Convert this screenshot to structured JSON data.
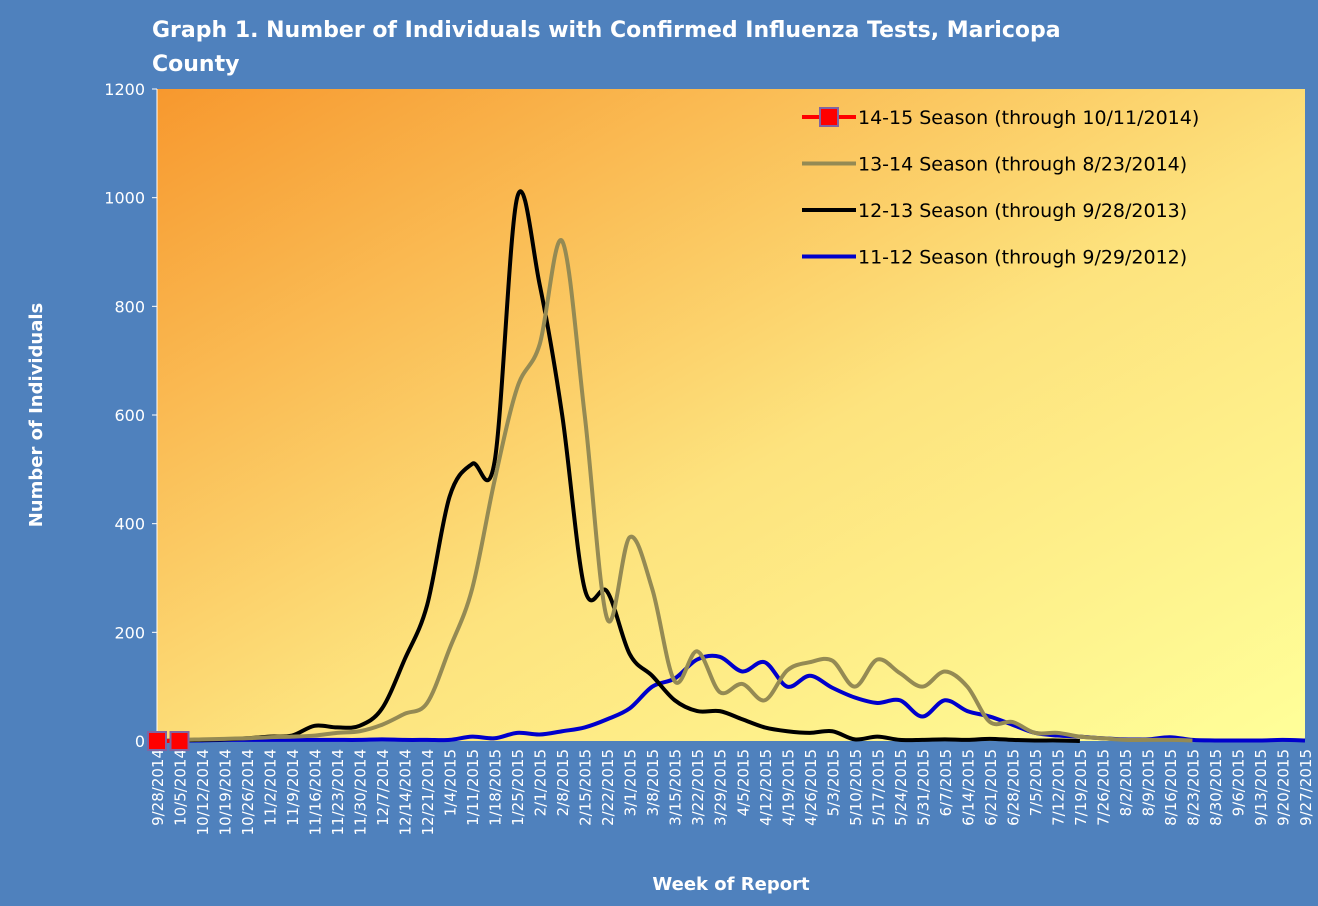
{
  "chart_data": {
    "type": "line",
    "title": "Graph 1. Number of Individuals with Confirmed Influenza Tests, Maricopa County",
    "y_label": "Number of Individuals",
    "x_label": "Week of Report",
    "categories": [
      "9/28/2014",
      "10/5/2014",
      "10/12/2014",
      "10/19/2014",
      "10/26/2014",
      "11/2/2014",
      "11/9/2014",
      "11/16/2014",
      "11/23/2014",
      "11/30/2014",
      "12/7/2014",
      "12/14/2014",
      "12/21/2014",
      "1/4/2015",
      "1/11/2015",
      "1/18/2015",
      "1/25/2015",
      "2/1/2015",
      "2/8/2015",
      "2/15/2015",
      "2/22/2015",
      "3/1/2015",
      "3/8/2015",
      "3/15/2015",
      "3/22/2015",
      "3/29/2015",
      "4/5/2015",
      "4/12/2015",
      "4/19/2015",
      "4/26/2015",
      "5/3/2015",
      "5/10/2015",
      "5/17/2015",
      "5/24/2015",
      "5/31/2015",
      "6/7/2015",
      "6/14/2015",
      "6/21/2015",
      "6/28/2015",
      "7/5/2015",
      "7/12/2015",
      "7/19/2015",
      "7/26/2015",
      "8/2/2015",
      "8/9/2015",
      "8/16/2015",
      "8/23/2015",
      "8/30/2015",
      "9/6/2015",
      "9/13/2015",
      "9/20/2015",
      "9/27/2015"
    ],
    "series": [
      {
        "name": "14-15 Season (through 10/11/2014)",
        "color": "#ff0000",
        "marker": "square",
        "values": [
          0,
          0,
          null,
          null,
          null,
          null,
          null,
          null,
          null,
          null,
          null,
          null,
          null,
          null,
          null,
          null,
          null,
          null,
          null,
          null,
          null,
          null,
          null,
          null,
          null,
          null,
          null,
          null,
          null,
          null,
          null,
          null,
          null,
          null,
          null,
          null,
          null,
          null,
          null,
          null,
          null,
          null,
          null,
          null,
          null,
          null,
          null,
          null,
          null,
          null,
          null,
          null
        ]
      },
      {
        "name": "13-14 Season (through 8/23/2014)",
        "color": "#948a54",
        "values": [
          0,
          2,
          3,
          4,
          5,
          7,
          8,
          10,
          15,
          18,
          30,
          50,
          70,
          170,
          280,
          480,
          650,
          730,
          920,
          600,
          225,
          375,
          280,
          110,
          165,
          90,
          105,
          75,
          130,
          145,
          148,
          100,
          150,
          125,
          100,
          128,
          100,
          35,
          35,
          15,
          15,
          8,
          5,
          2,
          2,
          2,
          1,
          null,
          null,
          null,
          null,
          null
        ]
      },
      {
        "name": "12-13 Season (through 9/28/2013)",
        "color": "#000000",
        "values": [
          0,
          1,
          2,
          3,
          5,
          8,
          10,
          28,
          25,
          28,
          60,
          150,
          250,
          450,
          510,
          515,
          1000,
          840,
          600,
          280,
          275,
          160,
          120,
          75,
          55,
          55,
          40,
          25,
          18,
          15,
          18,
          3,
          8,
          2,
          2,
          3,
          2,
          4,
          2,
          1,
          1,
          0,
          null,
          null,
          null,
          null,
          null,
          null,
          null,
          null,
          null,
          null
        ]
      },
      {
        "name": "11-12 Season (through 9/29/2012)",
        "color": "#0000cc",
        "values": [
          0,
          1,
          1,
          2,
          2,
          2,
          2,
          2,
          2,
          2,
          3,
          2,
          2,
          2,
          8,
          5,
          15,
          12,
          18,
          25,
          40,
          60,
          100,
          115,
          150,
          155,
          128,
          145,
          100,
          120,
          98,
          80,
          70,
          75,
          45,
          75,
          55,
          45,
          30,
          15,
          10,
          8,
          5,
          3,
          3,
          7,
          2,
          1,
          1,
          1,
          2,
          1
        ]
      }
    ],
    "ylim": [
      0,
      1200
    ],
    "yticks": [
      0,
      200,
      400,
      600,
      800,
      1000,
      1200
    ]
  }
}
